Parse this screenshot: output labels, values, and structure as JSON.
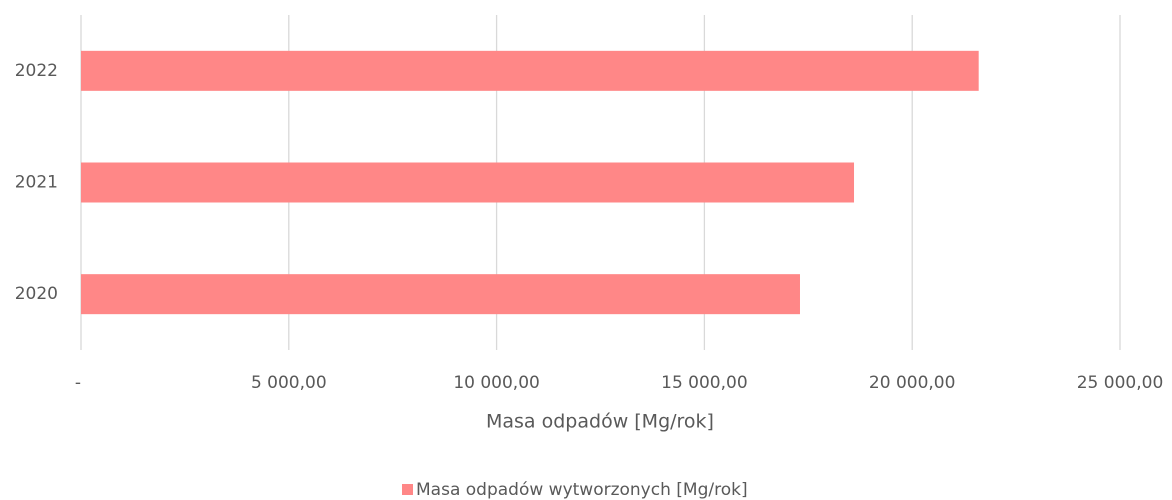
{
  "chart_data": {
    "type": "bar",
    "orientation": "horizontal",
    "categories": [
      "2020",
      "2021",
      "2022"
    ],
    "series": [
      {
        "name": "Masa odpadów wytworzonych [Mg/rok]",
        "color": "#ff8787",
        "values": [
          17300,
          18600,
          21600
        ]
      }
    ],
    "xlabel": "Masa odpadów [Mg/rok]",
    "xlim": [
      0,
      25000
    ],
    "xticks": [
      {
        "value": 0,
        "label": "-"
      },
      {
        "value": 5000,
        "label": "5 000,00"
      },
      {
        "value": 10000,
        "label": "10 000,00"
      },
      {
        "value": 15000,
        "label": "15 000,00"
      },
      {
        "value": 20000,
        "label": "20 000,00"
      },
      {
        "value": 25000,
        "label": "25 000,00"
      }
    ],
    "grid": true,
    "legend": "bottom"
  }
}
